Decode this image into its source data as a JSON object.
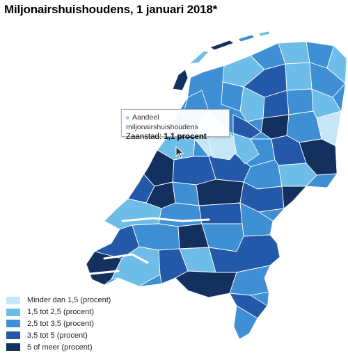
{
  "title": "Miljonairshuishoudens, 1 januari 2018*",
  "tooltip": {
    "series_label": "Aandeel miljonairshuishoudens",
    "municipality": "Zaanstad:",
    "value": "1,1 procent"
  },
  "colors": {
    "class1": "#c6e6f8",
    "class2": "#6dbde8",
    "class3": "#3e8fd3",
    "class4": "#2458a8",
    "class5": "#13305f"
  },
  "legend": [
    {
      "label": "Minder dan 1,5 (procent)",
      "color": "#c6e6f8"
    },
    {
      "label": "1,5 tot 2,5 (procent)",
      "color": "#6dbde8"
    },
    {
      "label": "2,5 tot 3,5 (procent)",
      "color": "#3e8fd3"
    },
    {
      "label": "3,5 tot 5 (procent)",
      "color": "#2458a8"
    },
    {
      "label": "5 of meer (procent)",
      "color": "#13305f"
    }
  ]
}
